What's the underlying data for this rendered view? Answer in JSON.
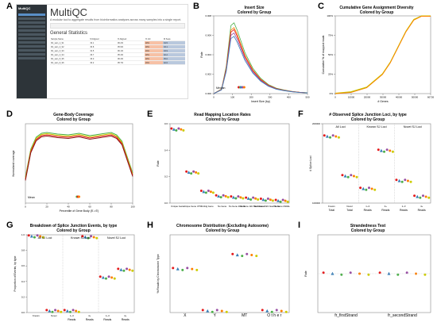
{
  "panel_letters": [
    "A",
    "B",
    "C",
    "D",
    "E",
    "F",
    "G",
    "H",
    "I"
  ],
  "multiqc": {
    "logo": "MultiQC",
    "title": "MultiQC",
    "subtitle": "A modular tool to aggregate results from bioinformatics analyses across many samples into a single report.",
    "general_heading": "General Statistics",
    "table_headers": [
      "Sample Name",
      "M Aligned",
      "% Aligned",
      "% GC",
      "M Seqs"
    ],
    "rows": [
      [
        "R1_sam_1_S1",
        "32.1",
        "96.2%",
        "48%",
        "34.5"
      ],
      [
        "R1_sam_2_S2",
        "30.8",
        "95.9%",
        "48%",
        "33.1"
      ],
      [
        "R1_sam_3_S3",
        "31.5",
        "96.1%",
        "49%",
        "33.9"
      ],
      [
        "R1_sam_4_S4",
        "29.7",
        "95.4%",
        "48%",
        "32.2"
      ],
      [
        "R1_sam_5_S5",
        "33.0",
        "96.4%",
        "48%",
        "35.0"
      ],
      [
        "R1_sam_6_S6",
        "30.2",
        "95.7%",
        "49%",
        "32.6"
      ]
    ]
  },
  "colors": {
    "red": "#e41a1c",
    "green": "#4daf4a",
    "blue": "#377eb8",
    "purple": "#984ea3",
    "orange": "#ff7f00",
    "yellow": "#cccc00",
    "darkred": "#8b1a1a"
  },
  "chart_data": [
    {
      "panel": "B",
      "type": "line",
      "title": "Insert Size",
      "subtitle": "Colored by Group",
      "xlabel": "Insert Size (bp)",
      "ylabel": "Rate",
      "xlim": [
        0,
        600
      ],
      "ylim": [
        0,
        0.009
      ],
      "x_ticks": [
        "0",
        "100",
        "200",
        "300",
        "400",
        "500"
      ],
      "y_ticks": [
        "0.000",
        "0.002",
        "0.004",
        "0.006",
        "0.008"
      ],
      "annotation": "Median",
      "series_shape": {
        "x": [
          0,
          50,
          80,
          110,
          130,
          150,
          170,
          200,
          250,
          300,
          350,
          400,
          450,
          500,
          550,
          600
        ],
        "y": [
          0.0,
          0.0005,
          0.003,
          0.0075,
          0.0078,
          0.007,
          0.006,
          0.0045,
          0.0028,
          0.0017,
          0.001,
          0.0006,
          0.0004,
          0.00025,
          0.00015,
          0.0001
        ]
      },
      "series": [
        {
          "color_key": "green",
          "scale": 1.05
        },
        {
          "color_key": "orange",
          "scale": 0.98
        },
        {
          "color_key": "red",
          "scale": 0.95
        },
        {
          "color_key": "purple",
          "scale": 0.9
        },
        {
          "color_key": "blue",
          "scale": 0.85
        }
      ],
      "median_points": [
        {
          "x": 160,
          "color_key": "red"
        },
        {
          "x": 170,
          "color_key": "green"
        },
        {
          "x": 175,
          "color_key": "blue"
        },
        {
          "x": 185,
          "color_key": "purple"
        },
        {
          "x": 195,
          "color_key": "orange"
        }
      ]
    },
    {
      "panel": "C",
      "type": "line",
      "title": "Cumulative Gene Assignment Diversity",
      "subtitle": "Colored by Group",
      "xlabel": "# Genes",
      "ylabel": "Cumulative % of mapped reads",
      "xlim": [
        0,
        60726
      ],
      "ylim": [
        0,
        1.0
      ],
      "x_ticks": [
        "0",
        "10000",
        "20000",
        "30000",
        "40000",
        "50000",
        "60726"
      ],
      "y_ticks": [
        "0%",
        "25%",
        "50%",
        "75%",
        "100%"
      ],
      "series_shape": {
        "x": [
          0,
          10000,
          20000,
          30000,
          35000,
          40000,
          45000,
          50000,
          55000,
          60726
        ],
        "y": [
          0.0,
          0.02,
          0.08,
          0.25,
          0.4,
          0.6,
          0.8,
          0.95,
          1.0,
          1.0
        ]
      }
    },
    {
      "panel": "D",
      "type": "line",
      "title": "Gene-Body Coverage",
      "subtitle": "Colored by Group",
      "xlabel": "Percentile of Gene Body (5'->3')",
      "ylabel": "Normalized coverage",
      "xlim": [
        0,
        100
      ],
      "ylim": [
        0,
        1.0
      ],
      "x_ticks": [
        "0",
        "20",
        "40",
        "60",
        "80",
        "100"
      ],
      "annotation": "Mean",
      "series_shape": {
        "x": [
          0,
          5,
          10,
          15,
          20,
          30,
          40,
          50,
          60,
          70,
          80,
          85,
          90,
          95,
          100
        ],
        "y": [
          0.3,
          0.65,
          0.8,
          0.85,
          0.86,
          0.84,
          0.83,
          0.85,
          0.82,
          0.84,
          0.86,
          0.83,
          0.75,
          0.55,
          0.35
        ]
      },
      "series": [
        {
          "color_key": "green",
          "offset": 0.03
        },
        {
          "color_key": "yellow",
          "offset": 0.015
        },
        {
          "color_key": "red",
          "offset": 0.0
        },
        {
          "color_key": "darkred",
          "offset": -0.015
        }
      ],
      "mean_points": [
        {
          "x": 48,
          "color_key": "green"
        },
        {
          "x": 49,
          "color_key": "red"
        },
        {
          "x": 50,
          "color_key": "orange"
        }
      ]
    },
    {
      "panel": "E",
      "type": "scatter",
      "title": "Read Mapping Location Rates",
      "subtitle": "Colored by Group",
      "ylabel": "Rate",
      "ylim": [
        0,
        0.7
      ],
      "y_ticks": [
        "0.0",
        "0.2",
        "0.4",
        "0.6"
      ],
      "categories": [
        "Unique Gene",
        "Unique Gene UTR",
        "Ambig Gene",
        "No Gene",
        "No Gene Intronic",
        "No Gene 1kb Near Gene",
        "No Gene 10kb Near Gene",
        "No Gene Middle"
      ],
      "values": [
        0.65,
        0.27,
        0.1,
        0.06,
        0.05,
        0.04,
        0.03,
        0.02
      ]
    },
    {
      "panel": "F",
      "type": "scatter",
      "title": "# Observed Splice Junction Loci, by type",
      "subtitle": "Colored by Group",
      "ylabel": "# Splice Loci",
      "ylim": [
        0,
        250000
      ],
      "y_ticks": [
        "100000",
        "200000"
      ],
      "group_labels": [
        "All Loci",
        "Known SJ Loci",
        "Novel SJ Loci"
      ],
      "categories": [
        "Known",
        "Novel",
        "1~3",
        "4+",
        "1~3",
        "4+"
      ],
      "categories_line2": [
        "Total",
        "Total",
        "Reads",
        "Reads",
        "Reads",
        "Reads"
      ],
      "values": [
        210000,
        85000,
        45000,
        165000,
        70000,
        20000
      ]
    },
    {
      "panel": "G",
      "type": "scatter",
      "title": "Breakdown of Splice Junction Events, by type",
      "subtitle": "Colored by Group",
      "ylabel": "Proportion of Events, by type",
      "ylim": [
        0,
        1.0
      ],
      "y_ticks": [
        "0.0",
        "0.2",
        "0.4",
        "0.6",
        "0.8",
        "1.0"
      ],
      "group_labels": [
        "All SJ Loci",
        "Known SJ Loci",
        "Novel SJ Loci"
      ],
      "categories": [
        "Known",
        "Novel",
        "1~3",
        "4+",
        "1~3",
        "4+"
      ],
      "categories_line2": [
        "",
        "",
        "Reads",
        "Reads",
        "Reads",
        "Reads"
      ],
      "values": [
        0.98,
        0.02,
        0.02,
        0.97,
        0.45,
        0.55
      ]
    },
    {
      "panel": "H",
      "type": "scatter",
      "title": "Chromosome Distribution (Excluding Autosome)",
      "subtitle": "Colored by Group",
      "ylabel": "% Reads by Chromosome Type",
      "ylim": [
        0,
        0.5
      ],
      "categories": [
        "X",
        "Y",
        "MT",
        "O t h e r"
      ],
      "values": [
        0.28,
        0.01,
        0.37,
        0.01
      ]
    },
    {
      "panel": "I",
      "type": "scatter",
      "title": "Strandedness Test",
      "subtitle": "Colored by Group",
      "ylabel": "Rate",
      "ylim": [
        0,
        1.0
      ],
      "categories": [
        "fr_firstStrand",
        "fr_secondStrand"
      ],
      "values": [
        0.5,
        0.5
      ]
    }
  ]
}
